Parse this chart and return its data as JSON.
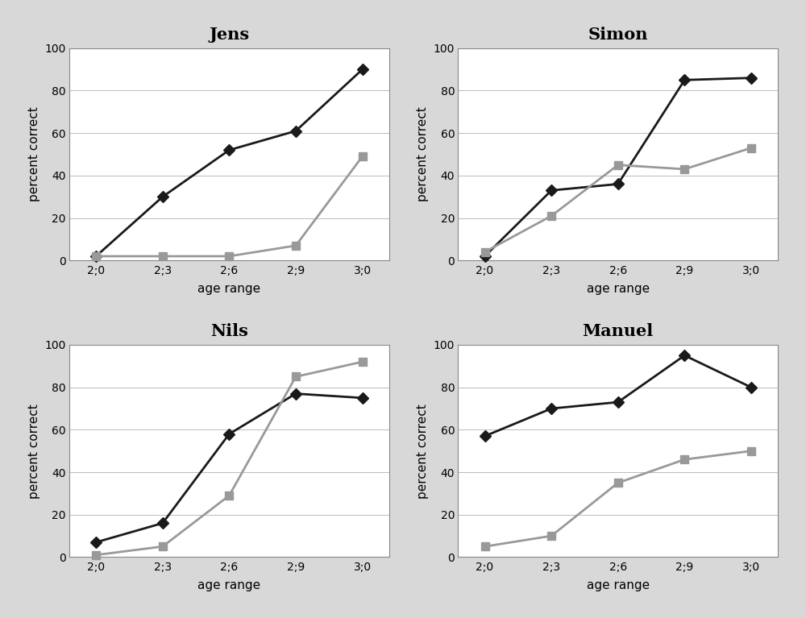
{
  "subplots": [
    {
      "title": "Jens",
      "dark_values": [
        2,
        30,
        52,
        61,
        90
      ],
      "gray_values": [
        2,
        2,
        2,
        7,
        49
      ]
    },
    {
      "title": "Simon",
      "dark_values": [
        2,
        33,
        36,
        85,
        86
      ],
      "gray_values": [
        4,
        21,
        45,
        43,
        53
      ]
    },
    {
      "title": "Nils",
      "dark_values": [
        7,
        16,
        58,
        77,
        75
      ],
      "gray_values": [
        1,
        5,
        29,
        85,
        92
      ]
    },
    {
      "title": "Manuel",
      "dark_values": [
        57,
        70,
        73,
        95,
        80
      ],
      "gray_values": [
        5,
        10,
        35,
        46,
        50
      ]
    }
  ],
  "x_labels": [
    "2;0",
    "2;3",
    "2;6",
    "2;9",
    "3;0"
  ],
  "x_positions": [
    0,
    1,
    2,
    3,
    4
  ],
  "ylabel": "percent correct",
  "xlabel": "age range",
  "ylim": [
    0,
    100
  ],
  "yticks": [
    0,
    20,
    40,
    60,
    80,
    100
  ],
  "dark_color": "#1a1a1a",
  "gray_color": "#999999",
  "dark_marker": "D",
  "gray_marker": "s",
  "marker_size": 7,
  "line_width": 2.0,
  "title_fontsize": 15,
  "title_fontweight": "bold",
  "label_fontsize": 11,
  "tick_fontsize": 10,
  "grid_color": "#bbbbbb",
  "grid_linewidth": 0.7,
  "figure_bg": "#d8d8d8",
  "axes_bg": "#ffffff",
  "spine_color": "#888888"
}
